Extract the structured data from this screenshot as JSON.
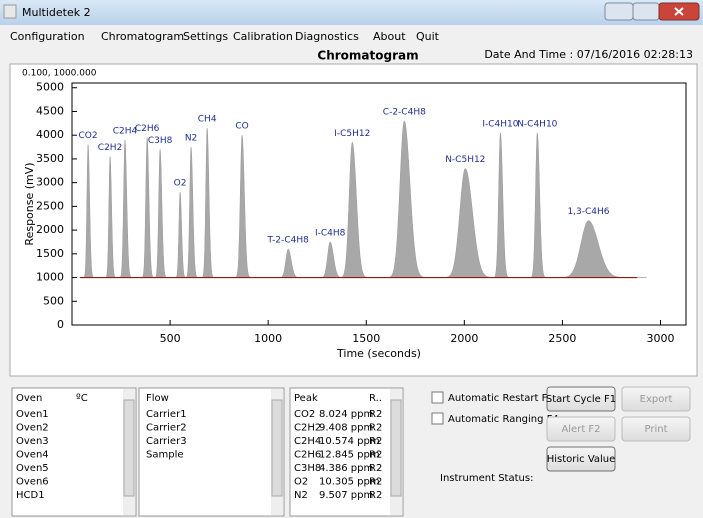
{
  "window": {
    "title": "Multidetek 2"
  },
  "menu": [
    "Configuration",
    "Chromatogram",
    "Settings",
    "Calibration",
    "Diagnostics",
    "About",
    "Quit"
  ],
  "header": {
    "title": "Chromatogram",
    "datetime": "Date And Time : 07/16/2016 02:28:13"
  },
  "chart_data": {
    "type": "chromatogram",
    "corner_label": "0.100, 1000.000",
    "x_label": "Time (seconds)",
    "y_label": "Response (mV)",
    "xlim": [
      0,
      3130
    ],
    "ylim": [
      0,
      5100
    ],
    "xticks": [
      500,
      1000,
      1500,
      2000,
      2500,
      3000
    ],
    "yticks": [
      0,
      500,
      1000,
      1500,
      2000,
      2500,
      3000,
      3500,
      4000,
      4500,
      5000
    ],
    "grid": false,
    "baseline": 1000,
    "baseline_span": [
      40,
      2880
    ],
    "color": "#a8a8a8",
    "label_color": "#1f2f8f",
    "peaks": [
      {
        "label": "CO2",
        "time": 82,
        "height": 3800,
        "width": 6
      },
      {
        "label": "C2H2",
        "time": 194,
        "height": 3550,
        "width": 6
      },
      {
        "label": "C2H4",
        "time": 270,
        "height": 3900,
        "width": 7
      },
      {
        "label": "C2H6",
        "time": 383,
        "height": 3950,
        "width": 7
      },
      {
        "label": "C3H8",
        "time": 449,
        "height": 3700,
        "width": 7
      },
      {
        "label": "O2",
        "time": 551,
        "height": 2800,
        "width": 6
      },
      {
        "label": "N2",
        "time": 607,
        "height": 3750,
        "width": 7
      },
      {
        "label": "CH4",
        "time": 689,
        "height": 4150,
        "width": 7
      },
      {
        "label": "CO",
        "time": 867,
        "height": 4000,
        "width": 9
      },
      {
        "label": "T-2-C4H8",
        "time": 1102,
        "height": 1600,
        "width": 12
      },
      {
        "label": "I-C4H8",
        "time": 1316,
        "height": 1750,
        "width": 13
      },
      {
        "label": "I-C5H12",
        "time": 1429,
        "height": 3850,
        "width": 16
      },
      {
        "label": "C-2-C4H8",
        "time": 1694,
        "height": 4300,
        "width": 22
      },
      {
        "label": "N-C5H12",
        "time": 2005,
        "height": 3300,
        "width": 28
      },
      {
        "label": "I-C4H10",
        "time": 2184,
        "height": 4050,
        "width": 9
      },
      {
        "label": "N-C4H10",
        "time": 2372,
        "height": 4050,
        "width": 9
      },
      {
        "label": "1,3-C4H6",
        "time": 2633,
        "height": 2200,
        "width": 38
      }
    ]
  },
  "oven": {
    "headers": [
      "Oven",
      "ºC"
    ],
    "rows": [
      "Oven1",
      "Oven2",
      "Oven3",
      "Oven4",
      "Oven5",
      "Oven6",
      "HCD1"
    ]
  },
  "flow": {
    "header": "Flow",
    "rows": [
      "Carrier1",
      "Carrier2",
      "Carrier3",
      "Sample"
    ]
  },
  "peaks_table": {
    "headers": [
      "Peak",
      "R.."
    ],
    "rows": [
      [
        "CO2",
        "8.024 ppm",
        "R2"
      ],
      [
        "C2H2",
        "9.408 ppm",
        "R2"
      ],
      [
        "C2H4",
        "10.574 ppm",
        "R2"
      ],
      [
        "C2H6",
        "12.845 ppm",
        "R2"
      ],
      [
        "C3H8",
        "4.386 ppm",
        "R2"
      ],
      [
        "O2",
        "10.305 ppm",
        "R2"
      ],
      [
        "N2",
        "9.507 ppm",
        "R2"
      ]
    ]
  },
  "controls": {
    "checkboxes": [
      "Automatic Restart F3",
      "Automatic Ranging F4"
    ],
    "buttons": [
      "Start Cycle F1",
      "Export",
      "Alert F2",
      "Print",
      "Historic Value"
    ],
    "status": "Instrument Status:"
  }
}
